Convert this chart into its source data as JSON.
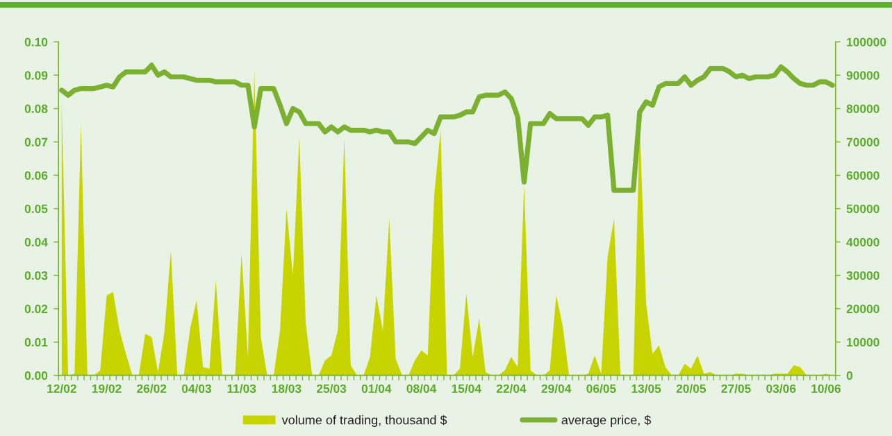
{
  "chart_data": {
    "type": "line",
    "categories": [
      "12/02",
      null,
      null,
      null,
      null,
      null,
      null,
      "19/02",
      null,
      null,
      null,
      null,
      null,
      null,
      "26/02",
      null,
      null,
      null,
      null,
      null,
      null,
      "04/03",
      null,
      null,
      null,
      null,
      null,
      null,
      "11/03",
      null,
      null,
      null,
      null,
      null,
      null,
      "18/03",
      null,
      null,
      null,
      null,
      null,
      null,
      "25/03",
      null,
      null,
      null,
      null,
      null,
      null,
      "01/04",
      null,
      null,
      null,
      null,
      null,
      null,
      "08/04",
      null,
      null,
      null,
      null,
      null,
      null,
      "15/04",
      null,
      null,
      null,
      null,
      null,
      null,
      "22/04",
      null,
      null,
      null,
      null,
      null,
      null,
      "29/04",
      null,
      null,
      null,
      null,
      null,
      null,
      "06/05",
      null,
      null,
      null,
      null,
      null,
      null,
      "13/05",
      null,
      null,
      null,
      null,
      null,
      null,
      "20/05",
      null,
      null,
      null,
      null,
      null,
      null,
      "27/05",
      null,
      null,
      null,
      null,
      null,
      null,
      "03/06",
      null,
      null,
      null,
      null,
      null,
      null,
      "10/06",
      null
    ],
    "series": [
      {
        "name": "volume of trading, thousand $",
        "type": "area",
        "axis": "y2",
        "color": "#c8d400",
        "values": [
          82000,
          0,
          500,
          75500,
          0,
          0,
          1500,
          24000,
          25000,
          13500,
          6500,
          0,
          0,
          12500,
          11500,
          1000,
          13000,
          37500,
          0,
          0,
          14000,
          22500,
          2500,
          2000,
          28500,
          0,
          0,
          0,
          36500,
          5500,
          91500,
          11500,
          0,
          0,
          13500,
          50000,
          30000,
          71500,
          15500,
          0,
          0,
          4500,
          6000,
          13500,
          71000,
          3000,
          0,
          0,
          5500,
          24000,
          13500,
          47000,
          5000,
          0,
          0,
          4500,
          7500,
          6000,
          54000,
          73500,
          0,
          0,
          2000,
          24500,
          5500,
          17000,
          1000,
          0,
          0,
          1500,
          5500,
          2500,
          57000,
          1500,
          0,
          0,
          1500,
          24000,
          15000,
          0,
          0,
          0,
          500,
          6000,
          500,
          35500,
          47000,
          0,
          0,
          0,
          75500,
          21500,
          6500,
          9000,
          2500,
          0,
          0,
          3500,
          2000,
          6000,
          500,
          1000,
          0,
          0,
          0,
          500,
          500,
          0,
          0,
          0,
          0,
          500,
          500,
          500,
          3000,
          2500,
          0,
          0,
          0,
          500,
          0
        ]
      },
      {
        "name": "average price, $",
        "color": "#7bb030",
        "values": [
          0.0855,
          0.084,
          0.0855,
          0.086,
          0.086,
          0.086,
          0.0865,
          0.087,
          0.0865,
          0.0895,
          0.091,
          0.091,
          0.091,
          0.091,
          0.093,
          0.09,
          0.091,
          0.0895,
          0.0895,
          0.0895,
          0.089,
          0.0885,
          0.0885,
          0.0885,
          0.088,
          0.088,
          0.088,
          0.088,
          0.087,
          0.087,
          0.0745,
          0.086,
          0.086,
          0.086,
          0.081,
          0.0755,
          0.08,
          0.079,
          0.0755,
          0.0755,
          0.0755,
          0.073,
          0.0745,
          0.073,
          0.0745,
          0.0735,
          0.0735,
          0.0735,
          0.073,
          0.0735,
          0.073,
          0.073,
          0.07,
          0.07,
          0.07,
          0.0695,
          0.0715,
          0.0735,
          0.0725,
          0.0775,
          0.0775,
          0.0775,
          0.078,
          0.079,
          0.079,
          0.0835,
          0.084,
          0.084,
          0.084,
          0.085,
          0.083,
          0.0775,
          0.058,
          0.0755,
          0.0755,
          0.0755,
          0.0785,
          0.077,
          0.077,
          0.077,
          0.077,
          0.077,
          0.075,
          0.0775,
          0.0775,
          0.078,
          0.0555,
          0.0555,
          0.0555,
          0.0555,
          0.079,
          0.082,
          0.081,
          0.0865,
          0.0875,
          0.0875,
          0.0875,
          0.0895,
          0.087,
          0.0885,
          0.0895,
          0.092,
          0.092,
          0.092,
          0.091,
          0.0895,
          0.09,
          0.089,
          0.0895,
          0.0895,
          0.0895,
          0.09,
          0.0925,
          0.091,
          0.089,
          0.0875,
          0.087,
          0.087,
          0.088,
          0.088,
          0.087
        ]
      }
    ],
    "ylim": [
      0,
      0.1
    ],
    "yticks": [
      {
        "value": 0,
        "label": "0.00"
      },
      {
        "value": 0.01,
        "label": "0.01"
      },
      {
        "value": 0.02,
        "label": "0.02"
      },
      {
        "value": 0.03,
        "label": "0.03"
      },
      {
        "value": 0.04,
        "label": "0.04"
      },
      {
        "value": 0.05,
        "label": "0.05"
      },
      {
        "value": 0.06,
        "label": "0.06"
      },
      {
        "value": 0.07,
        "label": "0.07"
      },
      {
        "value": 0.08,
        "label": "0.08"
      },
      {
        "value": 0.09,
        "label": "0.09"
      },
      {
        "value": 0.1,
        "label": "0.10"
      }
    ],
    "y2lim": [
      0,
      100000
    ],
    "y2ticks": [
      0,
      10000,
      20000,
      30000,
      40000,
      50000,
      60000,
      70000,
      80000,
      90000,
      100000
    ],
    "legend": "bottom"
  }
}
